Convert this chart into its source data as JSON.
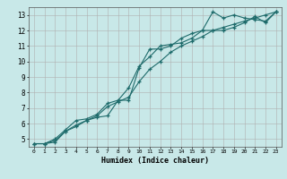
{
  "xlabel": "Humidex (Indice chaleur)",
  "bg_color": "#c8e8e8",
  "grid_color": "#b0b0b0",
  "line_color": "#1e6b6b",
  "xlim": [
    -0.5,
    23.5
  ],
  "ylim": [
    4.5,
    13.5
  ],
  "xticks": [
    0,
    1,
    2,
    3,
    4,
    5,
    6,
    7,
    8,
    9,
    10,
    11,
    12,
    13,
    14,
    15,
    16,
    17,
    18,
    19,
    20,
    21,
    22,
    23
  ],
  "yticks": [
    5,
    6,
    7,
    8,
    9,
    10,
    11,
    12,
    13
  ],
  "series": [
    [
      4.7,
      4.7,
      4.8,
      5.5,
      5.8,
      6.2,
      6.4,
      6.5,
      7.5,
      7.5,
      9.6,
      10.8,
      10.8,
      11.0,
      11.5,
      11.8,
      12.0,
      13.2,
      12.8,
      13.0,
      12.8,
      12.7,
      12.6,
      13.2
    ],
    [
      4.7,
      4.7,
      5.0,
      5.6,
      6.2,
      6.3,
      6.6,
      7.3,
      7.5,
      8.3,
      9.7,
      10.3,
      11.0,
      11.1,
      11.2,
      11.5,
      12.0,
      12.0,
      12.0,
      12.2,
      12.5,
      12.9,
      12.5,
      13.2
    ],
    [
      4.7,
      4.7,
      4.9,
      5.5,
      5.9,
      6.2,
      6.5,
      7.1,
      7.4,
      7.7,
      8.7,
      9.5,
      10.0,
      10.6,
      11.0,
      11.3,
      11.6,
      12.0,
      12.2,
      12.4,
      12.6,
      12.8,
      13.0,
      13.2
    ]
  ]
}
